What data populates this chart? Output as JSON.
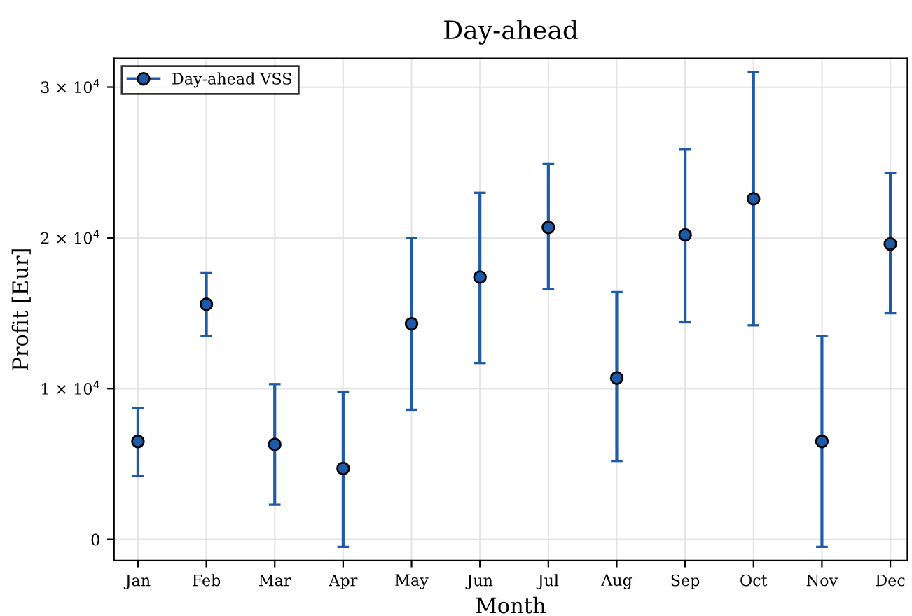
{
  "chart_data": {
    "type": "scatter",
    "title": "Day-ahead",
    "xlabel": "Month",
    "ylabel": "Profit [Eur]",
    "categories": [
      "Jan",
      "Feb",
      "Mar",
      "Apr",
      "May",
      "Jun",
      "Jul",
      "Aug",
      "Sep",
      "Oct",
      "Nov",
      "Dec"
    ],
    "series": [
      {
        "name": "Day-ahead VSS",
        "color": "#1f5aa6",
        "values": [
          6500,
          15600,
          6300,
          4700,
          14300,
          17400,
          20700,
          10700,
          20200,
          22600,
          6500,
          19600
        ],
        "errors": [
          [
            4200,
            8700
          ],
          [
            13500,
            17700
          ],
          [
            2300,
            10300
          ],
          [
            -500,
            9800
          ],
          [
            8600,
            20000
          ],
          [
            11700,
            23000
          ],
          [
            16600,
            24900
          ],
          [
            5200,
            16400
          ],
          [
            14400,
            25900
          ],
          [
            14200,
            31000
          ],
          [
            -500,
            13500
          ],
          [
            15000,
            24300
          ]
        ]
      }
    ],
    "ylim": [
      -1400,
      31900
    ],
    "yticks": [
      0,
      {
        "value": 10000,
        "label": "1 × 10$^{4}$"
      },
      {
        "value": 20000,
        "label": "2 × 10$^{4}$"
      },
      {
        "value": 30000,
        "label": "3 × 10$^{4}$"
      }
    ],
    "grid": true,
    "legend": "top left",
    "marker": "circle"
  }
}
